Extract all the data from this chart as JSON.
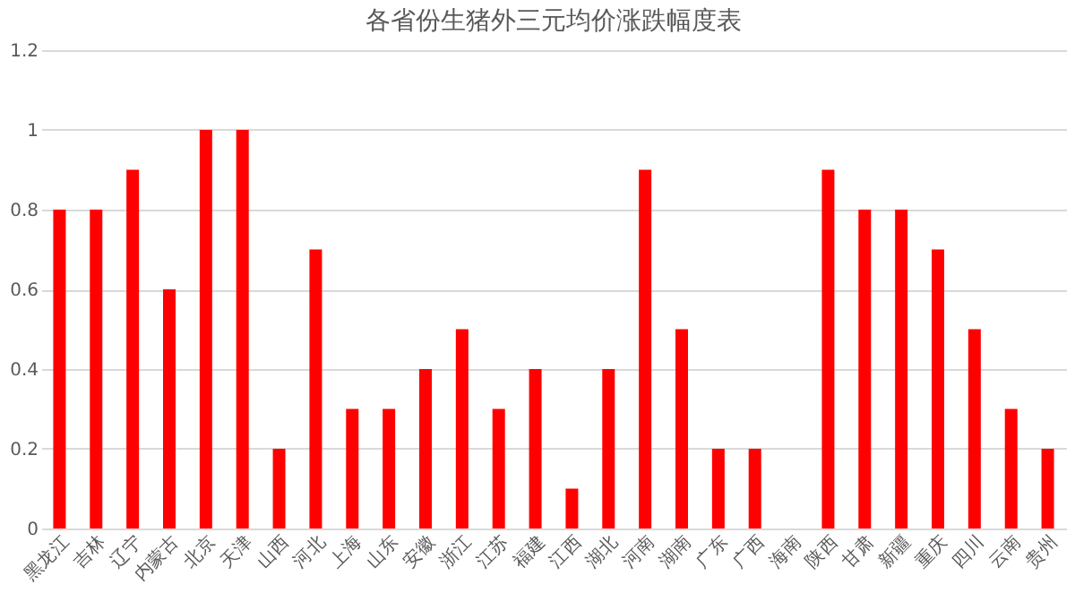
{
  "chart_data": {
    "type": "bar",
    "title": "各省份生猪外三元均价涨跌幅度表",
    "categories": [
      "黑龙江",
      "吉林",
      "辽宁",
      "内蒙古",
      "北京",
      "天津",
      "山西",
      "河北",
      "上海",
      "山东",
      "安徽",
      "浙江",
      "江苏",
      "福建",
      "江西",
      "湖北",
      "河南",
      "湖南",
      "广东",
      "广西",
      "海南",
      "陕西",
      "甘肃",
      "新疆",
      "重庆",
      "四川",
      "云南",
      "贵州"
    ],
    "values": [
      0.8,
      0.8,
      0.9,
      0.6,
      1,
      1,
      0.2,
      0.7,
      0.3,
      0.3,
      0.4,
      0.5,
      0.3,
      0.4,
      0.1,
      0.4,
      0.9,
      0.5,
      0.2,
      0.2,
      0,
      0.9,
      0.8,
      0.8,
      0.7,
      0.5,
      0.3,
      0.2
    ],
    "color": "#ff0000",
    "ylim": [
      0,
      1.2
    ],
    "yticks": [
      0,
      0.2,
      0.4,
      0.6,
      0.8,
      1,
      1.2
    ],
    "grid": "y"
  }
}
